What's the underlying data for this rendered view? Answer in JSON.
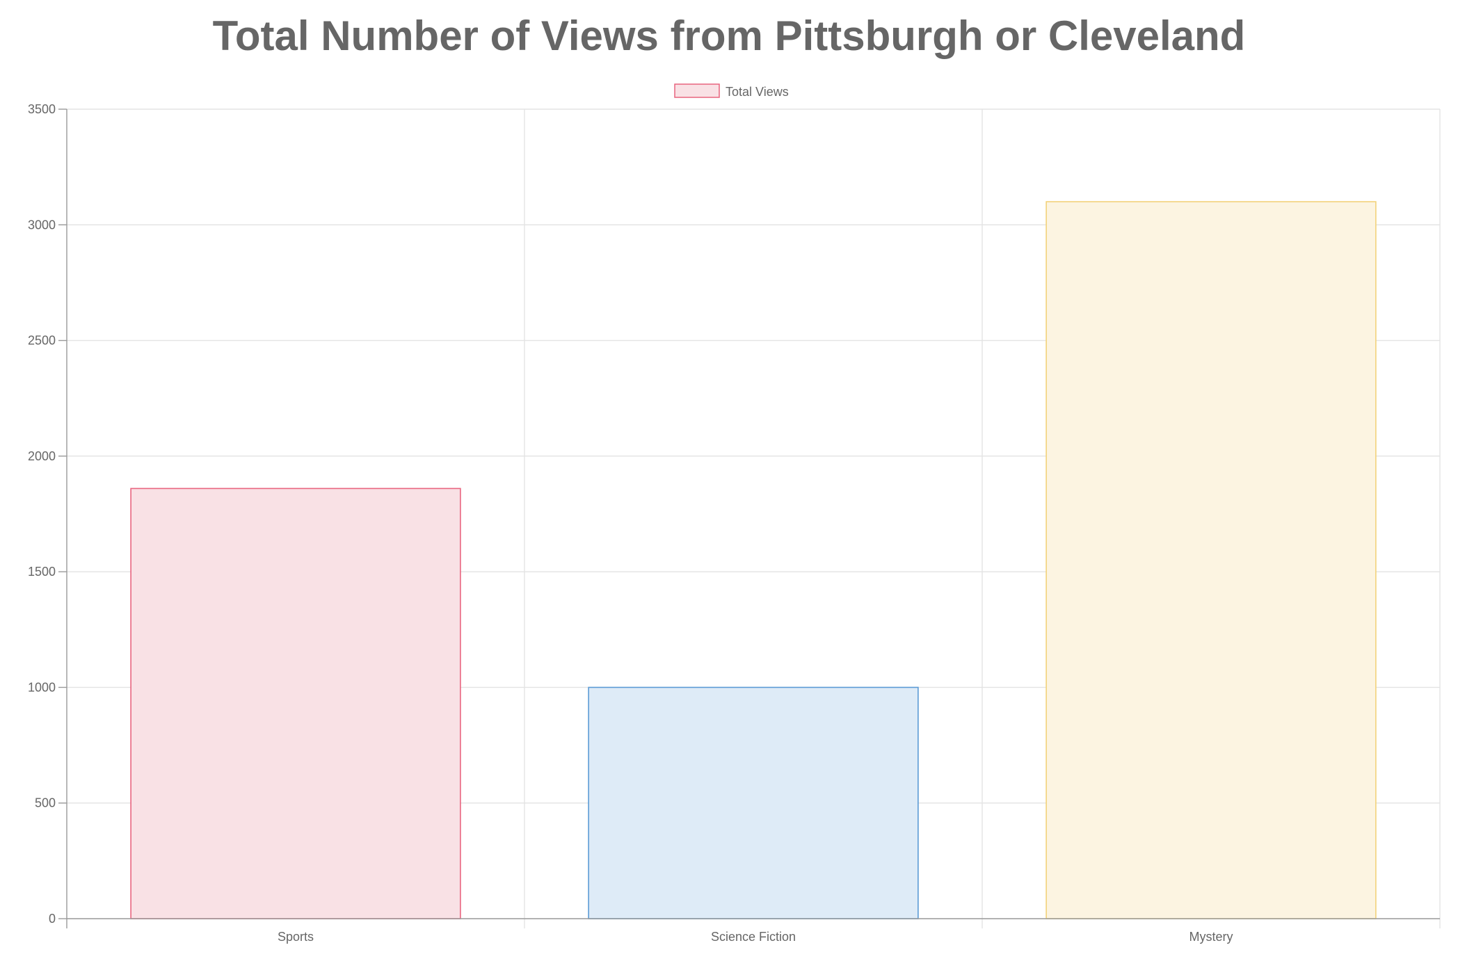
{
  "chart_data": {
    "type": "bar",
    "title": "Total Number of Views from Pittsburgh or Cleveland",
    "xlabel": "",
    "ylabel": "",
    "categories": [
      "Sports",
      "Science Fiction",
      "Mystery"
    ],
    "series": [
      {
        "name": "Total Views",
        "values": [
          1860,
          1000,
          3100
        ]
      }
    ],
    "bar_colors": [
      {
        "fill": "#f9e1e5",
        "border": "#e8647f"
      },
      {
        "fill": "#deebf7",
        "border": "#5b9bd5"
      },
      {
        "fill": "#fcf4e1",
        "border": "#f2d27a"
      }
    ],
    "legend_color": {
      "fill": "#f9e1e5",
      "border": "#e8647f"
    },
    "ylim": [
      0,
      3500
    ],
    "y_ticks": [
      0,
      500,
      1000,
      1500,
      2000,
      2500,
      3000,
      3500
    ],
    "grid": true,
    "legend_position": "top"
  }
}
